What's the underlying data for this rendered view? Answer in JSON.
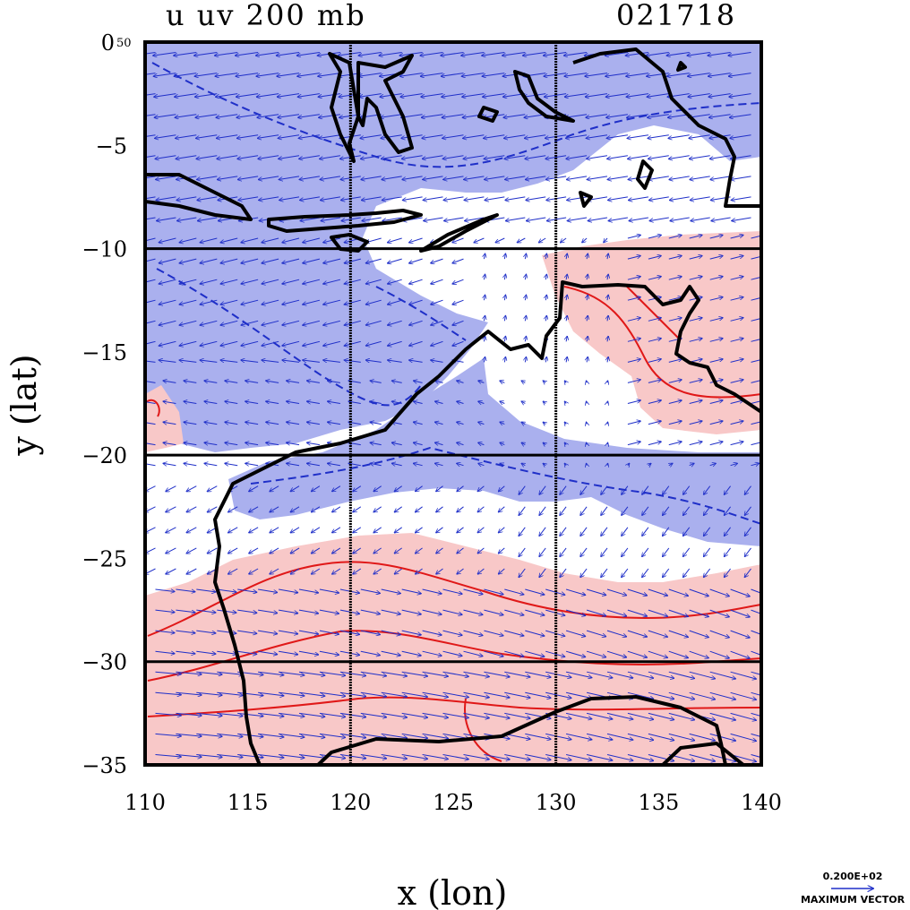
{
  "chart_data": {
    "type": "map",
    "title_left": "u uv 200 mb",
    "title_right": "021718",
    "xlabel": "x (lon)",
    "ylabel": "y (lat)",
    "xlim": [
      110,
      140
    ],
    "ylim": [
      -35,
      0
    ],
    "x_ticks": [
      110,
      115,
      120,
      125,
      130,
      135,
      140
    ],
    "y_ticks": [
      0,
      -5,
      -10,
      -15,
      -20,
      -25,
      -30,
      -35
    ],
    "y_tick_labels": [
      "0",
      "−5",
      "−10",
      "−15",
      "−20",
      "−25",
      "−30",
      "−35"
    ],
    "y_top_annotation": "50",
    "grid_lon": [
      120,
      130
    ],
    "grid_lat": [
      -10,
      -20,
      -30
    ],
    "fields": [
      {
        "name": "negative u (easterlies)",
        "fill": "#aab0ee",
        "contour": "#1f2fc8",
        "contour_style": "dashed"
      },
      {
        "name": "positive u (westerlies)",
        "fill": "#f8c8c8",
        "contour": "#e01818",
        "contour_style": "solid"
      }
    ],
    "vector_color": "#1f2fc8",
    "coastline_color": "#000000",
    "vector_legend": {
      "magnitude": "0.200E+02",
      "label": "MAXIMUM VECTOR"
    }
  },
  "colors": {
    "ocean_blue_fill": "#aab0ee",
    "warm_fill": "#f8c8c8",
    "neg_contour": "#1f2fc8",
    "pos_contour": "#e01818",
    "vector": "#1f2fc8",
    "coast": "#000000"
  }
}
